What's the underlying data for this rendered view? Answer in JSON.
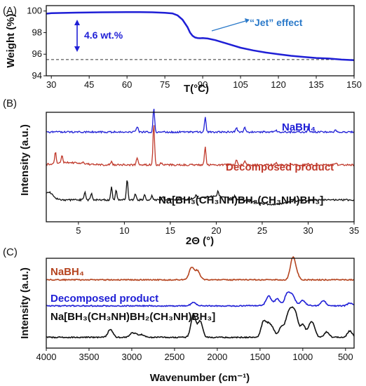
{
  "chart_data": [
    {
      "type": "line",
      "panel_label": "(A)",
      "ylabel": "Weight (%)",
      "xlabel": "T(°C)",
      "xlim": [
        28,
        150
      ],
      "ylim": [
        94,
        100.5
      ],
      "xticks": [
        30,
        45,
        60,
        75,
        90,
        105,
        120,
        135,
        150
      ],
      "yticks": [
        94,
        96,
        98,
        100
      ],
      "series": [
        {
          "color": "#1f1fd6",
          "x": [
            28,
            30,
            40,
            50,
            60,
            65,
            70,
            75,
            78,
            80,
            82,
            84,
            85,
            86,
            87,
            88,
            89,
            90,
            92,
            95,
            100,
            105,
            110,
            115,
            120,
            125,
            130,
            135,
            140,
            145,
            150
          ],
          "y": [
            99.75,
            99.8,
            99.85,
            99.88,
            99.9,
            99.9,
            99.88,
            99.84,
            99.78,
            99.6,
            99.2,
            98.5,
            98.0,
            97.7,
            97.55,
            97.5,
            97.48,
            97.5,
            97.45,
            97.3,
            96.95,
            96.6,
            96.35,
            96.15,
            96.0,
            95.85,
            95.75,
            95.65,
            95.6,
            95.5,
            95.45
          ]
        }
      ],
      "reference_line_y": 95.5,
      "annotations": {
        "mass_loss": "4.6 wt.%",
        "jet": "“Jet” effect"
      }
    },
    {
      "type": "line",
      "panel_label": "(B)",
      "ylabel": "Intensity (a.u.)",
      "xlabel": "2Θ (°)",
      "xlim": [
        1.5,
        35
      ],
      "xticks": [
        5,
        10,
        15,
        20,
        25,
        30,
        35
      ],
      "series": [
        {
          "name": "NaBH₄",
          "color": "#1f1fd6",
          "baseline": 0.82,
          "peaks": [
            [
              11.4,
              0.05
            ],
            [
              13.2,
              0.22
            ],
            [
              18.8,
              0.13
            ],
            [
              22.2,
              0.04
            ],
            [
              23.1,
              0.04
            ],
            [
              26.5,
              0.02
            ],
            [
              30.0,
              0.03
            ],
            [
              33.0,
              0.02
            ]
          ]
        },
        {
          "name": "Decomposed product",
          "color": "#c0392b",
          "baseline": 0.52,
          "peaks": [
            [
              2.5,
              0.1
            ],
            [
              3.2,
              0.07
            ],
            [
              5.5,
              0.02
            ],
            [
              8.6,
              0.03
            ],
            [
              11.4,
              0.07
            ],
            [
              13.2,
              0.38
            ],
            [
              14.0,
              0.02
            ],
            [
              18.8,
              0.16
            ],
            [
              22.2,
              0.04
            ],
            [
              23.1,
              0.04
            ],
            [
              26.5,
              0.02
            ],
            [
              30.0,
              0.02
            ],
            [
              33.0,
              0.02
            ]
          ]
        },
        {
          "name": "Na[BH₃(CH₃NH)BH₂(CH₃NH)BH₃]",
          "color": "#111111",
          "baseline": 0.2,
          "peaks": [
            [
              5.7,
              0.07
            ],
            [
              6.4,
              0.06
            ],
            [
              8.6,
              0.12
            ],
            [
              9.1,
              0.09
            ],
            [
              10.3,
              0.19
            ],
            [
              11.2,
              0.06
            ],
            [
              12.2,
              0.05
            ],
            [
              13.0,
              0.04
            ],
            [
              14.2,
              0.03
            ],
            [
              16.0,
              0.02
            ],
            [
              17.8,
              0.03
            ],
            [
              20.2,
              0.05
            ],
            [
              22.0,
              0.02
            ],
            [
              28.5,
              0.02
            ]
          ]
        }
      ]
    },
    {
      "type": "line",
      "panel_label": "(C)",
      "ylabel": "Intensity (a.u.)",
      "xlabel": "Wavenumber (cm⁻¹)",
      "xlim": [
        4000,
        400
      ],
      "xticks": [
        4000,
        3500,
        3000,
        2500,
        2000,
        1500,
        1000,
        500
      ],
      "series": [
        {
          "name": "NaBH₄",
          "color": "#b5441f",
          "baseline": 0.76,
          "peaks": [
            [
              2300,
              0.14
            ],
            [
              2230,
              0.1
            ],
            [
              1120,
              0.22
            ],
            [
              1080,
              0.08
            ]
          ]
        },
        {
          "name": "Decomposed product",
          "color": "#1f1fd6",
          "baseline": 0.47,
          "peaks": [
            [
              2280,
              0.04
            ],
            [
              1400,
              0.1
            ],
            [
              1300,
              0.06
            ],
            [
              1180,
              0.12
            ],
            [
              1120,
              0.1
            ],
            [
              1000,
              0.05
            ],
            [
              760,
              0.06
            ],
            [
              450,
              0.03
            ]
          ]
        },
        {
          "name": "Na[BH₃(CH₃NH)BH₂(CH₃NH)BH₃]",
          "color": "#111111",
          "baseline": 0.12,
          "peaks": [
            [
              3250,
              0.09
            ],
            [
              3000,
              0.04
            ],
            [
              2950,
              0.03
            ],
            [
              2880,
              0.03
            ],
            [
              2280,
              0.25
            ],
            [
              2200,
              0.18
            ],
            [
              1460,
              0.17
            ],
            [
              1400,
              0.13
            ],
            [
              1350,
              0.08
            ],
            [
              1250,
              0.12
            ],
            [
              1180,
              0.2
            ],
            [
              1130,
              0.25
            ],
            [
              1080,
              0.22
            ],
            [
              1000,
              0.14
            ],
            [
              920,
              0.1
            ],
            [
              880,
              0.12
            ],
            [
              720,
              0.06
            ],
            [
              450,
              0.07
            ]
          ]
        }
      ]
    }
  ]
}
